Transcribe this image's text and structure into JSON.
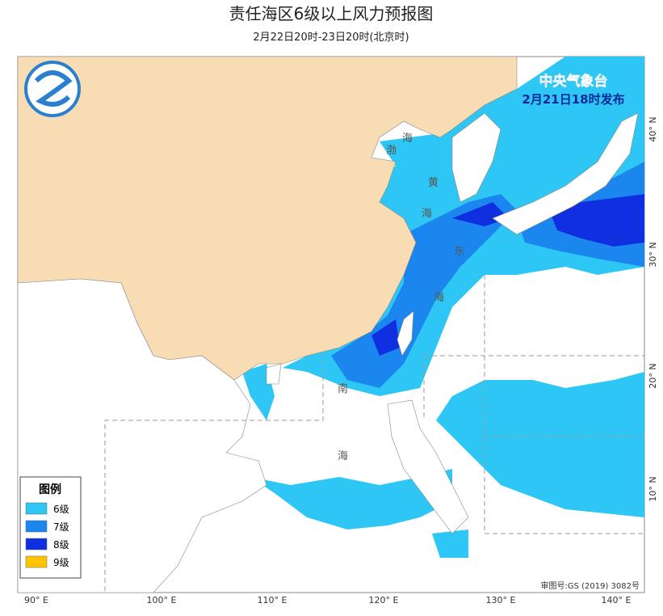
{
  "header": {
    "title": "责任海区6级以上风力预报图",
    "subtitle": "2月22日20时-23日20时(北京时)"
  },
  "issuer": {
    "name": "中央气象台",
    "time": "2月21日18时发布"
  },
  "legend": {
    "title": "图例",
    "items": [
      {
        "label": "6级",
        "color": "#2ec6f4"
      },
      {
        "label": "7级",
        "color": "#1a86ee"
      },
      {
        "label": "8级",
        "color": "#0f2fe0"
      },
      {
        "label": "9级",
        "color": "#ffc400"
      }
    ]
  },
  "sea_labels": {
    "bohai": [
      "渤",
      "海"
    ],
    "huanghai": [
      "黄",
      "海"
    ],
    "donghai": [
      "东",
      "海"
    ],
    "nanhai": [
      "南",
      "海"
    ]
  },
  "longitude_labels": [
    "90° E",
    "100° E",
    "110° E",
    "120° E",
    "130° E",
    "140° E"
  ],
  "latitude_labels": [
    "10° N",
    "20° N",
    "30° N",
    "40° N"
  ],
  "approval": "审图号:GS (2019) 3082号"
}
